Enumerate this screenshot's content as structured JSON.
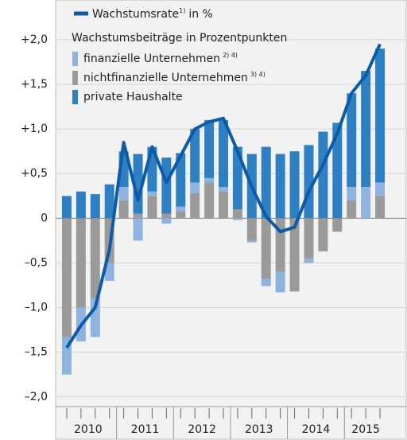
{
  "chart_data": {
    "type": "bar",
    "legend_title": "Wachstumsbeiträge in Prozentpunkten",
    "years": [
      "2010",
      "2011",
      "2012",
      "2013",
      "2014",
      "2015"
    ],
    "categories": [
      null,
      null,
      null,
      null,
      null,
      null,
      null,
      null,
      null,
      null,
      null,
      null,
      null,
      null,
      null,
      null,
      null,
      null,
      null,
      null,
      null,
      null,
      null
    ],
    "series": [
      {
        "name": "finanzielle Unternehmen",
        "footnote": "2) 4)",
        "color": "#8db3de",
        "values": [
          -0.42,
          -0.38,
          -0.43,
          -0.2,
          0.15,
          -0.25,
          0.05,
          -0.06,
          0.05,
          0.12,
          0.05,
          0.05,
          -0.02,
          -0.02,
          -0.08,
          -0.23,
          0,
          -0.05,
          0,
          0,
          0.15,
          0.35,
          0.15
        ]
      },
      {
        "name": "nichtfinanzielle Unternehmen",
        "footnote": "3) 4)",
        "color": "#9a9a9a",
        "values": [
          -1.33,
          -1.0,
          -0.9,
          -0.5,
          0.2,
          0.05,
          0.25,
          0.05,
          0.08,
          0.28,
          0.4,
          0.3,
          0.1,
          -0.25,
          -0.68,
          -0.6,
          -0.82,
          -0.45,
          -0.37,
          -0.15,
          0.2,
          0,
          0.25
        ]
      },
      {
        "name": "private Haushalte",
        "color": "#2f80c3",
        "values": [
          0.25,
          0.3,
          0.27,
          0.38,
          0.4,
          0.67,
          0.5,
          0.63,
          0.6,
          0.6,
          0.65,
          0.75,
          0.7,
          0.72,
          0.8,
          0.72,
          0.75,
          0.82,
          0.97,
          1.07,
          1.05,
          1.3,
          1.5
        ]
      },
      {
        "name": "Wachstumsrate",
        "footnote": "1)",
        "suffix": "in %",
        "type": "line",
        "color": "#0d5ba8",
        "values": [
          -1.45,
          -1.2,
          -1.0,
          -0.35,
          0.85,
          0.2,
          0.8,
          0.4,
          0.7,
          1.0,
          1.08,
          1.12,
          0.75,
          0.35,
          0.02,
          -0.15,
          -0.1,
          0.3,
          0.6,
          0.95,
          1.4,
          1.6,
          1.95
        ]
      }
    ],
    "ylim": [
      -2.1,
      2.4
    ],
    "yticks": [
      {
        "value": -2,
        "label": "–2,0"
      },
      {
        "value": -1.5,
        "label": "–1,5"
      },
      {
        "value": -1,
        "label": "–1,0"
      },
      {
        "value": -0.5,
        "label": "–0,5"
      },
      0,
      {
        "value": 0.5,
        "label": "+0,5"
      },
      {
        "value": 1,
        "label": "+1,0"
      },
      {
        "value": 1.5,
        "label": "+1,5"
      },
      {
        "value": 2,
        "label": "+2,0"
      }
    ],
    "grid": true
  }
}
